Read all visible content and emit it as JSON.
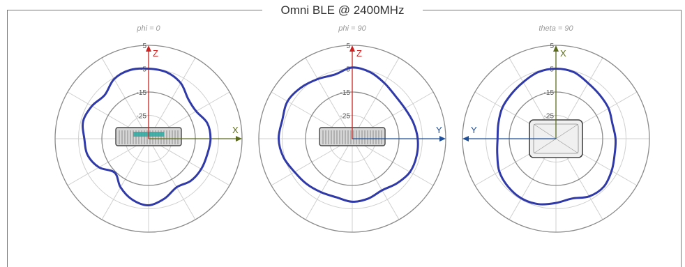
{
  "title": "Omni BLE @ 2400MHz",
  "colors": {
    "pattern": "#2f3aa8",
    "axis_z": "#cc2222",
    "axis_x": "#5b6b1e",
    "axis_y": "#1f4f99",
    "grid": "#cfcfcf",
    "ring": "#8a8a8a"
  },
  "chart_data": [
    {
      "type": "polar",
      "title": "phi = 0",
      "radial_ticks": [
        "5",
        "-5",
        "-15",
        "-25"
      ],
      "radial_range": [
        -35,
        5
      ],
      "axes": [
        {
          "label": "Z",
          "direction": "up"
        },
        {
          "label": "X",
          "direction": "right"
        }
      ],
      "series": [
        {
          "angles_deg": [
            0,
            15,
            30,
            45,
            60,
            75,
            90,
            105,
            120,
            135,
            150,
            165,
            180,
            195,
            210,
            225,
            240,
            255,
            270,
            285,
            300,
            315,
            330,
            345
          ],
          "values_db": [
            -5.0,
            -5.5,
            -7.5,
            -11.0,
            -11.5,
            -9.0,
            -8.5,
            -9.0,
            -9.0,
            -9.5,
            -11.0,
            -8.5,
            -6.5,
            -8.0,
            -11.0,
            -14.5,
            -10.5,
            -8.0,
            -7.5,
            -6.0,
            -7.0,
            -8.5,
            -5.5,
            -4.5
          ]
        }
      ]
    },
    {
      "type": "polar",
      "title": "phi = 90",
      "radial_ticks": [
        "5",
        "-5",
        "-15",
        "-25"
      ],
      "radial_range": [
        -35,
        5
      ],
      "axes": [
        {
          "label": "Z",
          "direction": "up"
        },
        {
          "label": "Y",
          "direction": "right"
        }
      ],
      "series": [
        {
          "angles_deg": [
            0,
            15,
            30,
            45,
            60,
            75,
            90,
            105,
            120,
            135,
            150,
            165,
            180,
            195,
            210,
            225,
            240,
            255,
            270,
            285,
            300,
            315,
            330,
            345
          ],
          "values_db": [
            -4.5,
            -5.5,
            -7.5,
            -9.0,
            -9.0,
            -8.0,
            -7.0,
            -6.5,
            -6.5,
            -8.0,
            -9.5,
            -8.5,
            -8.0,
            -9.0,
            -8.5,
            -7.5,
            -6.5,
            -4.5,
            -3.5,
            -4.0,
            -3.0,
            -4.0,
            -5.5,
            -6.5
          ]
        }
      ]
    },
    {
      "type": "polar",
      "title": "theta = 90",
      "radial_ticks": [
        "5",
        "-5",
        "-15",
        "-25"
      ],
      "radial_range": [
        -35,
        5
      ],
      "axes": [
        {
          "label": "X",
          "direction": "up"
        },
        {
          "label": "Y",
          "direction": "left"
        }
      ],
      "series": [
        {
          "angles_deg": [
            0,
            15,
            30,
            45,
            60,
            75,
            90,
            105,
            120,
            135,
            150,
            165,
            180,
            195,
            210,
            225,
            240,
            255,
            270,
            285,
            300,
            315,
            330,
            345
          ],
          "values_db": [
            -5.0,
            -5.5,
            -7.5,
            -8.5,
            -9.0,
            -10.0,
            -9.5,
            -9.0,
            -7.5,
            -6.0,
            -6.5,
            -8.5,
            -7.5,
            -6.0,
            -5.5,
            -6.0,
            -7.0,
            -9.0,
            -10.0,
            -9.5,
            -8.5,
            -8.0,
            -7.0,
            -5.5
          ]
        }
      ]
    }
  ]
}
